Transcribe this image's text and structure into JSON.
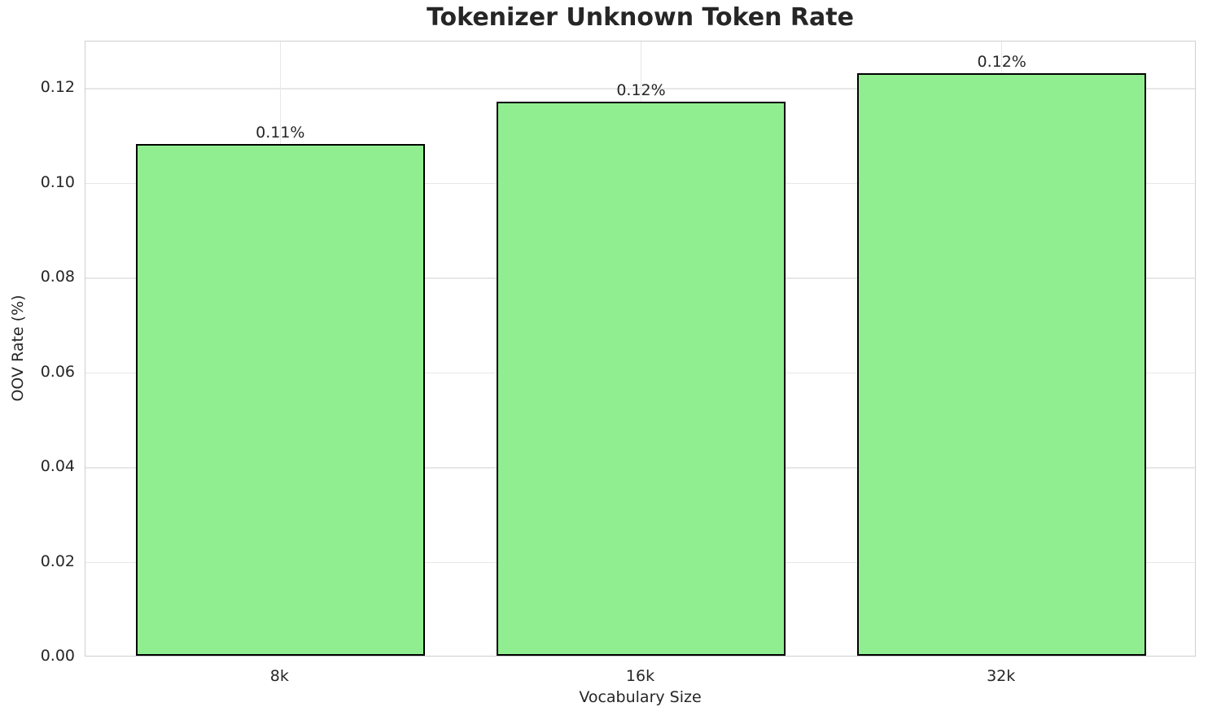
{
  "chart_data": {
    "type": "bar",
    "title": "Tokenizer Unknown Token Rate",
    "xlabel": "Vocabulary Size",
    "ylabel": "OOV Rate (%)",
    "categories": [
      "8k",
      "16k",
      "32k"
    ],
    "values": [
      0.108,
      0.117,
      0.123
    ],
    "bar_labels": [
      "0.11%",
      "0.12%",
      "0.12%"
    ],
    "ylim": [
      0,
      0.13
    ],
    "yticks": [
      0,
      0.02,
      0.04,
      0.06,
      0.08,
      0.1,
      0.12
    ],
    "ytick_labels": [
      "0.00",
      "0.02",
      "0.04",
      "0.06",
      "0.08",
      "0.10",
      "0.12"
    ],
    "grid": true,
    "legend": "none",
    "colors": {
      "bar_fill": "#90ee90",
      "bar_edge": "#000000",
      "grid": "#e7e7e7",
      "spine": "#cfcfcf",
      "text": "#262626",
      "background": "#ffffff"
    }
  }
}
